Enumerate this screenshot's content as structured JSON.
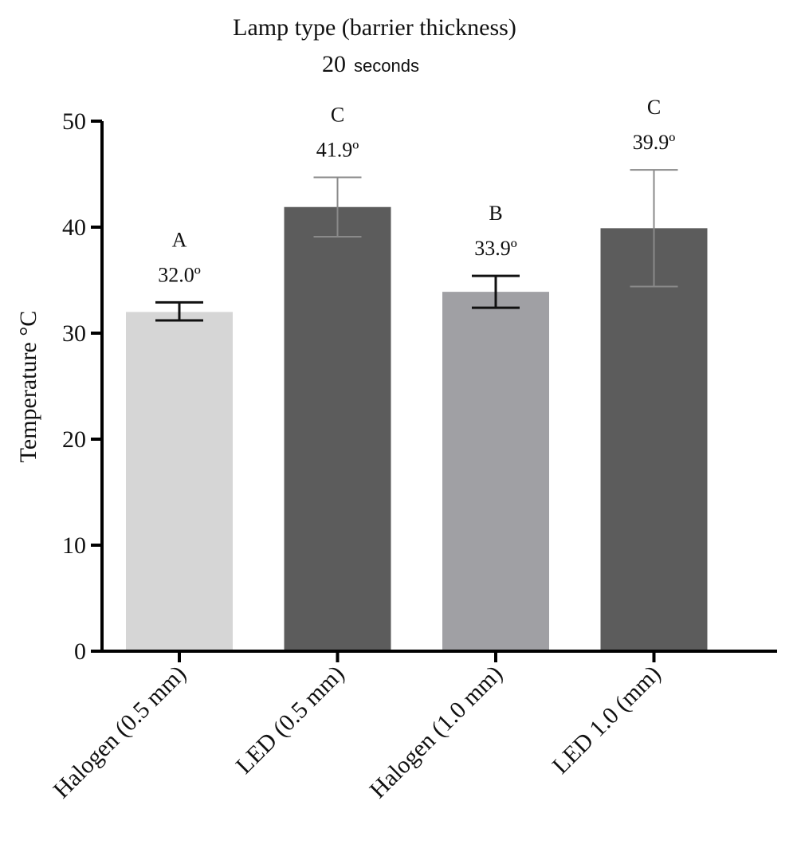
{
  "chart_data": {
    "type": "bar",
    "title": "Lamp type (barrier thickness)",
    "subtitle_number": "20",
    "subtitle_unit": "seconds",
    "ylabel": "Temperature °C",
    "xlabel": "",
    "ylim": [
      0,
      50
    ],
    "yticks": [
      0,
      10,
      20,
      30,
      40,
      50
    ],
    "grid": false,
    "categories": [
      "Halogen (0.5 mm)",
      "LED (0.5 mm)",
      "Halogen (1.0 mm)",
      "LED 1.0 (mm)"
    ],
    "values": [
      32.0,
      41.9,
      33.9,
      39.9
    ],
    "error_low": [
      31.2,
      39.1,
      32.4,
      34.4
    ],
    "error_high": [
      32.9,
      44.7,
      35.4,
      45.4
    ],
    "value_labels": [
      "32.0º",
      "41.9º",
      "33.9º",
      "39.9º"
    ],
    "group_letters": [
      "A",
      "C",
      "B",
      "C"
    ],
    "bar_colors": [
      "#d6d6d6",
      "#5c5c5c",
      "#a0a0a4",
      "#5c5c5c"
    ],
    "error_colors": [
      "#111111",
      "#8a8a8a",
      "#111111",
      "#8a8a8a"
    ]
  }
}
